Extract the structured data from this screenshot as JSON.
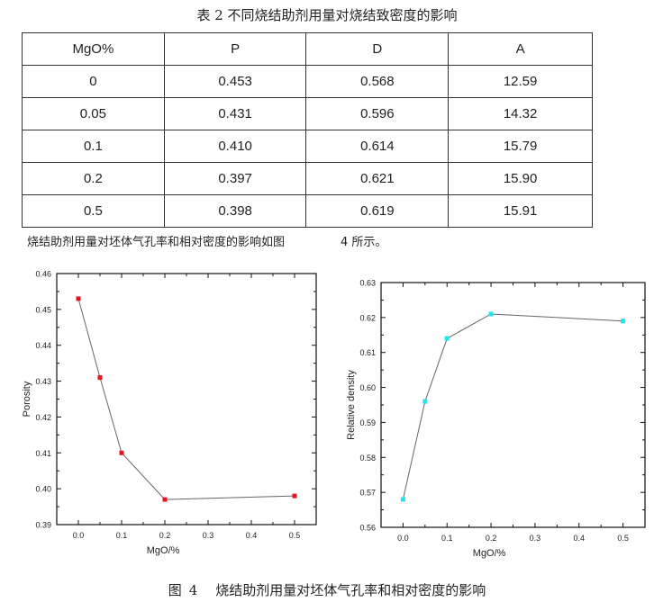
{
  "table": {
    "title": "表 2  不同烧结助剂用量对烧结致密度的影响",
    "headers": [
      "MgO%",
      "P",
      "D",
      "A"
    ],
    "rows": [
      [
        "0",
        "0.453",
        "0.568",
        "12.59"
      ],
      [
        "0.05",
        "0.431",
        "0.596",
        "14.32"
      ],
      [
        "0.1",
        "0.410",
        "0.614",
        "15.79"
      ],
      [
        "0.2",
        "0.397",
        "0.621",
        "15.90"
      ],
      [
        "0.5",
        "0.398",
        "0.619",
        "15.91"
      ]
    ]
  },
  "text_line": {
    "main": "烧结助剂用量对坯体气孔率和相对密度的影响如图",
    "ref": "4 所示。"
  },
  "figure_caption": {
    "label": "图",
    "number": "4",
    "text": "烧结助剂用量对坯体气孔率和相对密度的影响"
  },
  "chart_data": [
    {
      "type": "line",
      "x": [
        0,
        0.05,
        0.1,
        0.2,
        0.5
      ],
      "y": [
        0.453,
        0.431,
        0.41,
        0.397,
        0.398
      ],
      "xlabel": "MgO/%",
      "ylabel": "Porosity",
      "xlim": [
        -0.05,
        0.55
      ],
      "ylim": [
        0.39,
        0.46
      ],
      "xticks": [
        "0.0",
        "0.1",
        "0.2",
        "0.3",
        "0.4",
        "0.5"
      ],
      "yticks": [
        "0.39",
        "0.40",
        "0.41",
        "0.42",
        "0.43",
        "0.44",
        "0.45",
        "0.46"
      ],
      "marker_color": "#e8141e",
      "line_color": "#666666"
    },
    {
      "type": "line",
      "x": [
        0,
        0.05,
        0.1,
        0.2,
        0.5
      ],
      "y": [
        0.568,
        0.596,
        0.614,
        0.621,
        0.619
      ],
      "xlabel": "MgO/%",
      "ylabel": "Relative density",
      "xlim": [
        -0.05,
        0.55
      ],
      "ylim": [
        0.56,
        0.63
      ],
      "xticks": [
        "0.0",
        "0.1",
        "0.2",
        "0.3",
        "0.4",
        "0.5"
      ],
      "yticks": [
        "0.56",
        "0.57",
        "0.58",
        "0.59",
        "0.60",
        "0.61",
        "0.62",
        "0.63"
      ],
      "marker_color": "#1ee6f0",
      "line_color": "#666666"
    }
  ]
}
